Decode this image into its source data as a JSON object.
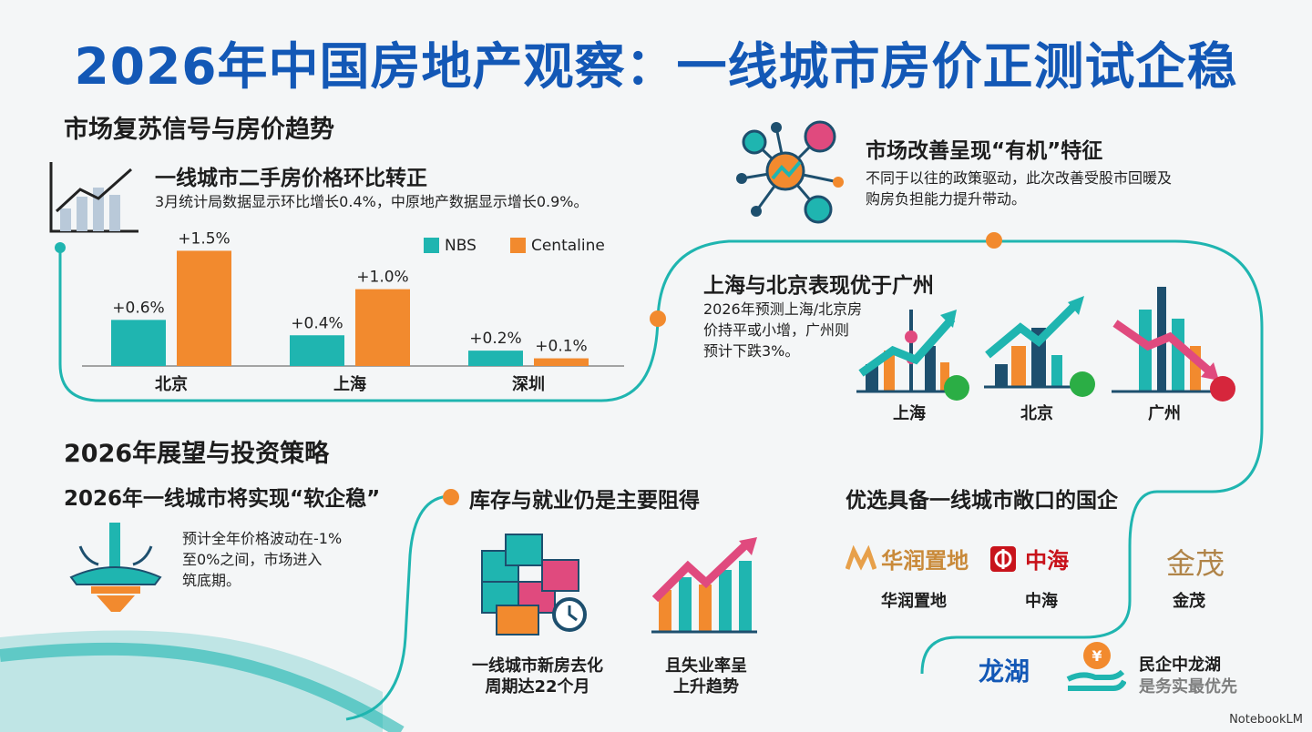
{
  "title": "2026年中国房地产观察：一线城市房价正测试企稳",
  "section1": {
    "heading": "市场复苏信号与房价趋势",
    "sub_heading": "一线城市二手房价格环比转正",
    "desc": "3月统计局数据显示环比增长0.4%，中原地产数据显示增长0.9%。"
  },
  "chart_data": {
    "type": "bar",
    "categories": [
      "北京",
      "上海",
      "深圳"
    ],
    "series": [
      {
        "name": "NBS",
        "values": [
          0.6,
          0.4,
          0.2
        ],
        "labels": [
          "+0.6%",
          "+0.4%",
          "+0.2%"
        ],
        "color": "#1fb5b0"
      },
      {
        "name": "Centaline",
        "values": [
          1.5,
          1.0,
          0.1
        ],
        "labels": [
          "+1.5%",
          "+1.0%",
          "+0.1%"
        ],
        "color": "#f28a2e"
      }
    ],
    "ylim": [
      0,
      1.6
    ],
    "legend_position": "top-right",
    "grid": false
  },
  "organic": {
    "heading": "市场改善呈现“有机”特征",
    "desc_line1": "不同于以往的政策驱动，此次改善受股市回暖及",
    "desc_line2": "购房负担能力提升带动。"
  },
  "cities": {
    "heading": "上海与北京表现优于广州",
    "desc_line1": "2026年预测上海/北京房",
    "desc_line2": "价持平或小增，广州则",
    "desc_line3": "预计下跌3%。",
    "items": [
      {
        "label": "上海",
        "status": "green"
      },
      {
        "label": "北京",
        "status": "green"
      },
      {
        "label": "广州",
        "status": "red"
      }
    ]
  },
  "outlook": {
    "heading": "2026年展望与投资策略",
    "soft_heading": "2026年一线城市将实现“软企稳”",
    "soft_line1": "预计全年价格波动在-1%",
    "soft_line2": "至0%之间，市场进入",
    "soft_line3": "筑底期。"
  },
  "obstacles": {
    "heading": "库存与就业仍是主要阻得",
    "inv_line1": "一线城市新房去化",
    "inv_line2": "周期达22个月",
    "job_line1": "且失业率呈",
    "job_line2": "上升趋势"
  },
  "picks": {
    "heading": "优选具备一线城市敞口的国企",
    "companies": [
      {
        "logo": "华润置地",
        "label": "华润置地"
      },
      {
        "logo": "中海",
        "label": "中海"
      },
      {
        "logo": "金茂",
        "label": "金茂"
      }
    ],
    "longfor_logo": "龙湖",
    "currency_symbol": "¥",
    "longfor_line1": "民企中龙湖",
    "longfor_line2": "是务实最优先"
  },
  "watermark": "NotebookLM"
}
